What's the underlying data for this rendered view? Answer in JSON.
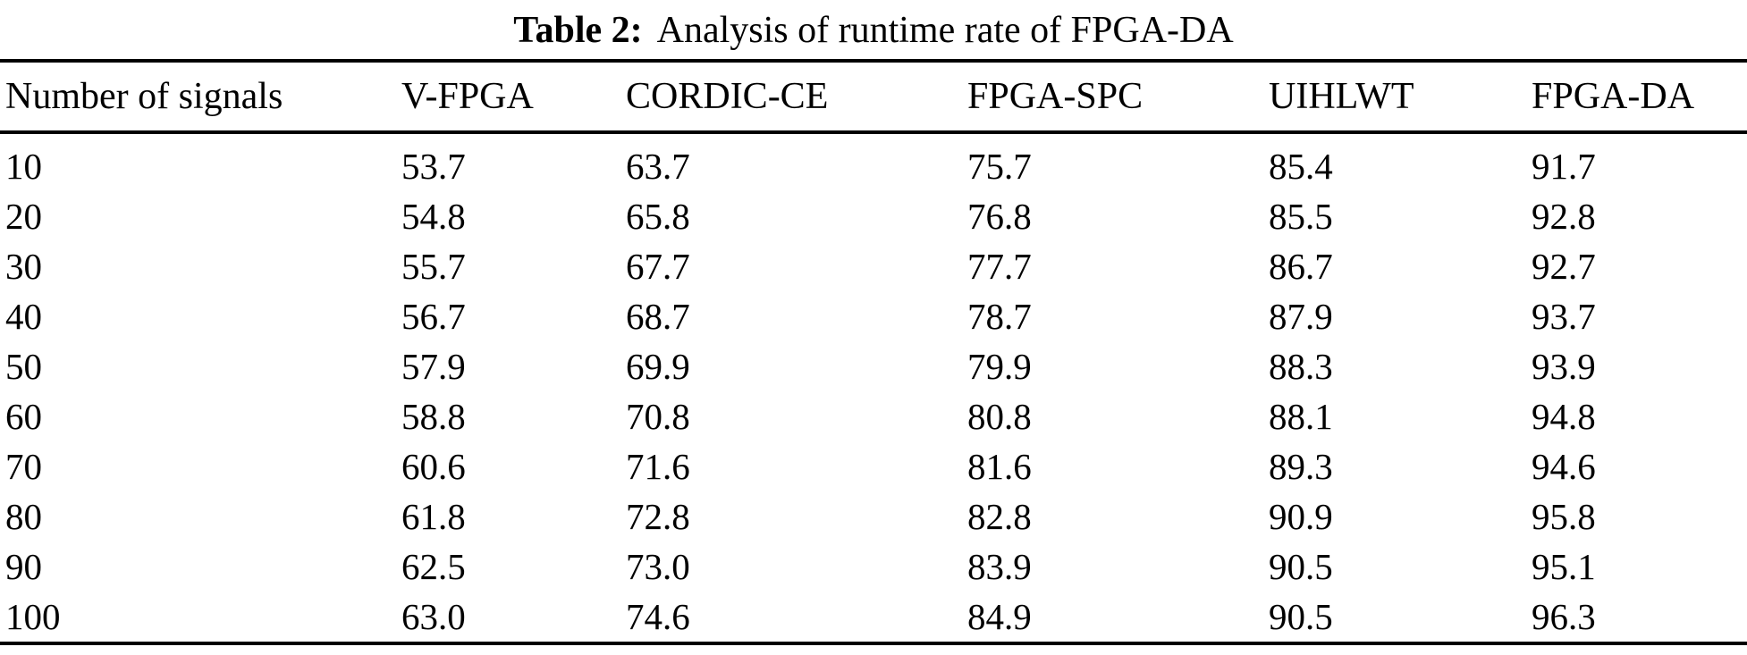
{
  "caption": {
    "label": "Table 2:",
    "text": "Analysis of runtime rate of FPGA-DA"
  },
  "chart_data": {
    "type": "table",
    "title": "Table 2: Analysis of runtime rate of FPGA-DA",
    "columns": [
      "Number of signals",
      "V-FPGA",
      "CORDIC-CE",
      "FPGA-SPC",
      "UIHLWT",
      "FPGA-DA"
    ],
    "rows": [
      [
        "10",
        "53.7",
        "63.7",
        "75.7",
        "85.4",
        "91.7"
      ],
      [
        "20",
        "54.8",
        "65.8",
        "76.8",
        "85.5",
        "92.8"
      ],
      [
        "30",
        "55.7",
        "67.7",
        "77.7",
        "86.7",
        "92.7"
      ],
      [
        "40",
        "56.7",
        "68.7",
        "78.7",
        "87.9",
        "93.7"
      ],
      [
        "50",
        "57.9",
        "69.9",
        "79.9",
        "88.3",
        "93.9"
      ],
      [
        "60",
        "58.8",
        "70.8",
        "80.8",
        "88.1",
        "94.8"
      ],
      [
        "70",
        "60.6",
        "71.6",
        "81.6",
        "89.3",
        "94.6"
      ],
      [
        "80",
        "61.8",
        "72.8",
        "82.8",
        "90.9",
        "95.8"
      ],
      [
        "90",
        "62.5",
        "73.0",
        "83.9",
        "90.5",
        "95.1"
      ],
      [
        "100",
        "63.0",
        "74.6",
        "84.9",
        "90.5",
        "96.3"
      ]
    ],
    "text_color": "#000000",
    "background_color": "#ffffff",
    "rule_color": "#000000"
  }
}
